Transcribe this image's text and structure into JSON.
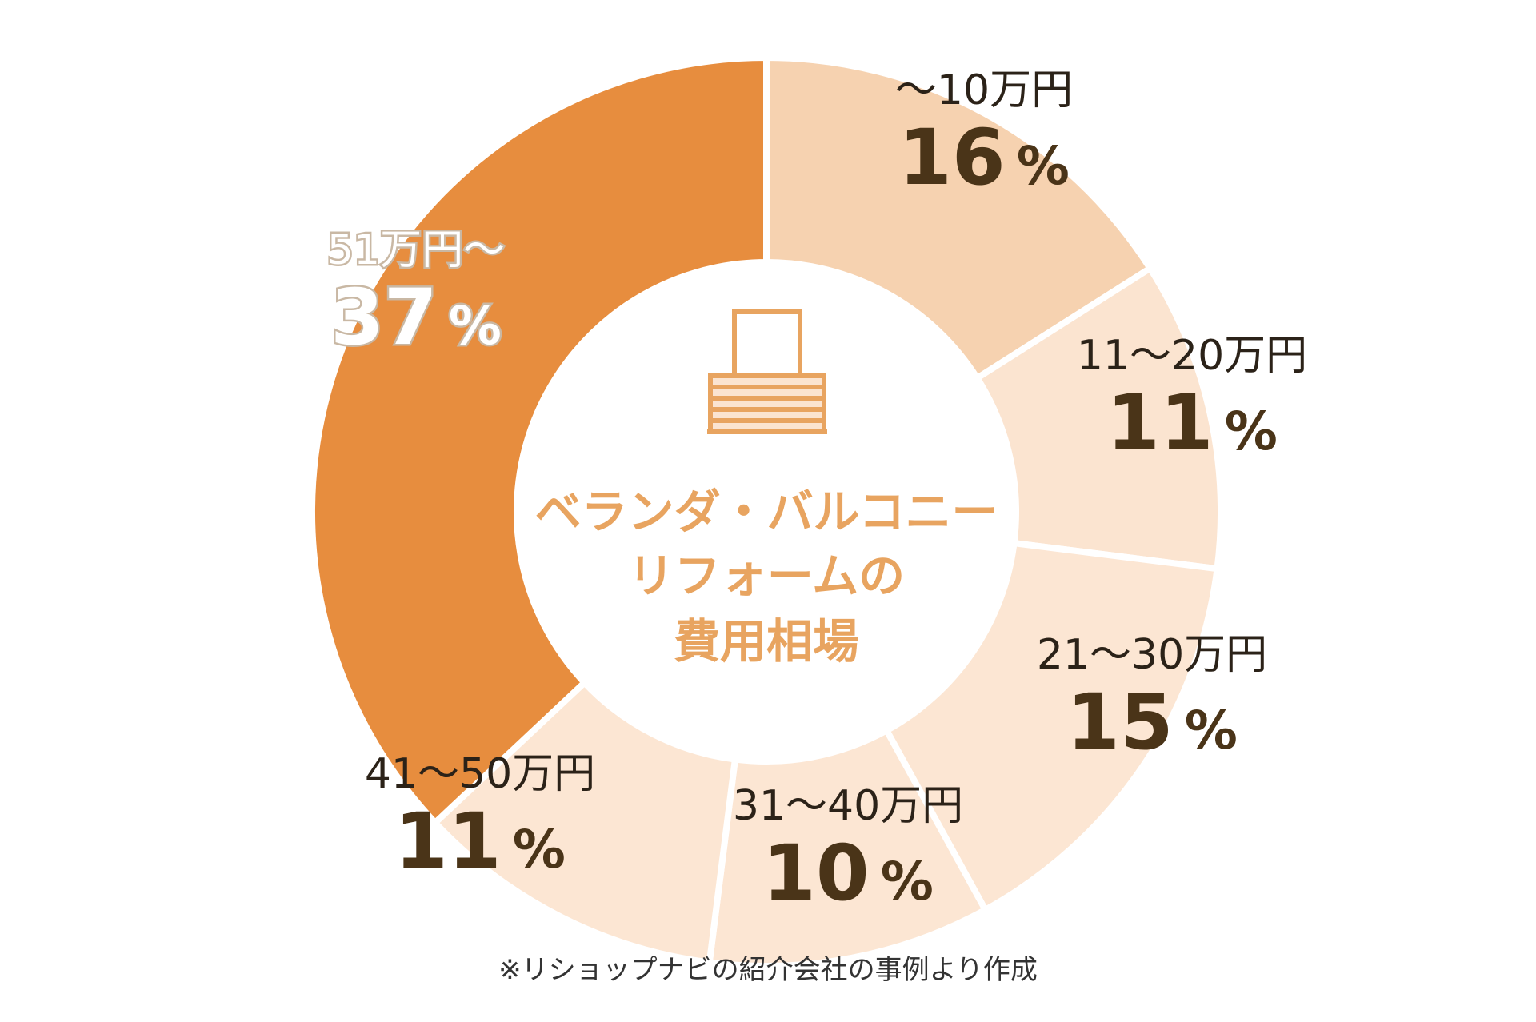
{
  "chart_data": {
    "type": "pie",
    "title": "",
    "center_title": [
      "ベランダ・バルコニー",
      "リフォームの",
      "費用相場"
    ],
    "slices": [
      {
        "label": "〜10万円",
        "value": 16,
        "pct_text": "16",
        "color": "#f6d2b0",
        "dark_text": true
      },
      {
        "label": "11〜20万円",
        "value": 11,
        "pct_text": "11",
        "color": "#fbe4d0",
        "dark_text": true
      },
      {
        "label": "21〜30万円",
        "value": 15,
        "pct_text": "15",
        "color": "#fce6d3",
        "dark_text": true
      },
      {
        "label": "31〜40万円",
        "value": 10,
        "pct_text": "10",
        "color": "#fce6d3",
        "dark_text": true
      },
      {
        "label": "41〜50万円",
        "value": 11,
        "pct_text": "11",
        "color": "#fce6d3",
        "dark_text": true
      },
      {
        "label": "51万円〜",
        "value": 37,
        "pct_text": "37",
        "color": "#e78d3e",
        "dark_text": false
      }
    ],
    "percent_sign": "%",
    "legend": "none",
    "footnote": "※リショップナビの紹介会社の事例より作成"
  },
  "icons": {
    "center": "balcony-icon"
  },
  "colors": {
    "center_text": "#e8a460",
    "dark_text": "#4a3418"
  }
}
